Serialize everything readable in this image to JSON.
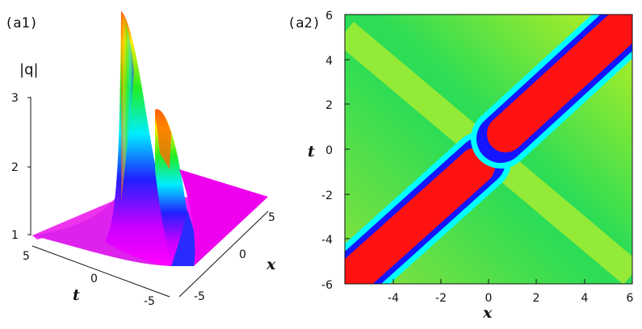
{
  "figure": {
    "panel_a1": {
      "label": "(a1)",
      "z_axis_label": "|q|",
      "x_axis_label": "x",
      "t_axis_label": "t",
      "z_ticks": [
        "1",
        "2",
        "3"
      ],
      "x_ticks": [
        "5",
        "0",
        "-5"
      ],
      "t_ticks": [
        "5",
        "0",
        "-5"
      ]
    },
    "panel_a2": {
      "label": "(a2)",
      "x_axis_label": "x",
      "y_axis_label": "t",
      "x_ticks": [
        "-4",
        "-2",
        "0",
        "2",
        "4",
        "6"
      ],
      "y_ticks": [
        "6",
        "4",
        "2",
        "0",
        "-2",
        "-4",
        "-6"
      ]
    }
  },
  "colors": {
    "magenta": "#ff00ff",
    "blue": "#1010ff",
    "cyan": "#00ffff",
    "green": "#22dd22",
    "yellow": "#eeff22",
    "red": "#ff1010",
    "background_field": "#7fe23a"
  }
}
